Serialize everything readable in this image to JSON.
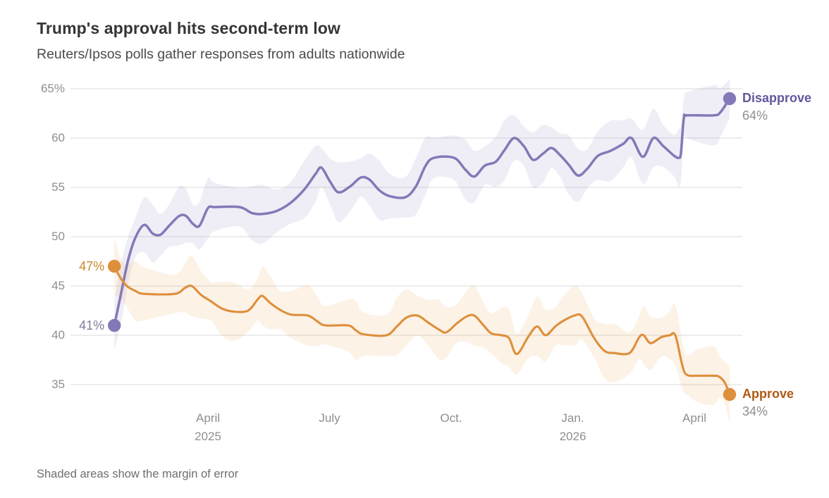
{
  "header": {
    "title": "Trump's approval hits second-term low",
    "subtitle": "Reuters/Ipsos polls gather responses from adults nationwide"
  },
  "footer": {
    "note": "Shaded areas show the margin of error"
  },
  "chart_data": {
    "type": "line",
    "title": "Trump's approval hits second-term low",
    "subtitle": "Reuters/Ipsos polls gather responses from adults nationwide",
    "note": "Shaded areas show the margin of error",
    "x_unit": "months_since_2025_01_01",
    "x_axis": {
      "range": [
        -0.4,
        16.2
      ],
      "ticks": [
        {
          "t": 3,
          "label": "April",
          "year": "2025"
        },
        {
          "t": 6,
          "label": "July",
          "year": ""
        },
        {
          "t": 9,
          "label": "Oct.",
          "year": ""
        },
        {
          "t": 12,
          "label": "Jan.",
          "year": "2026"
        },
        {
          "t": 15,
          "label": "April",
          "year": ""
        }
      ]
    },
    "y_axis": {
      "unit": "%",
      "ylim": [
        35,
        65
      ],
      "gridlines": true,
      "gridline_color": "#dbdbdb",
      "ticks": [
        {
          "value": 65,
          "label": "65%"
        },
        {
          "value": 60,
          "label": "60"
        },
        {
          "value": 55,
          "label": "55"
        },
        {
          "value": 50,
          "label": "50"
        },
        {
          "value": 45,
          "label": "45"
        },
        {
          "value": 40,
          "label": "40"
        },
        {
          "value": 35,
          "label": "35"
        }
      ]
    },
    "series": [
      {
        "name": "Disapprove",
        "color": "#8379b8",
        "band_color": "#8379b8",
        "band_opacity": 0.13,
        "line_width": 3.5,
        "margin_of_error_pct": 2.5,
        "start_value_pct": 41,
        "end_value_pct": 64,
        "start_label": {
          "text": "41%",
          "color": "#837d99"
        },
        "end_label": {
          "name": "Disapprove",
          "value": "64%",
          "name_color": "#60589d"
        },
        "points": [
          [
            0.69,
            41.0
          ],
          [
            0.86,
            44.3
          ],
          [
            1.03,
            47.6
          ],
          [
            1.21,
            49.9
          ],
          [
            1.43,
            51.2
          ],
          [
            1.64,
            50.3
          ],
          [
            1.83,
            50.2
          ],
          [
            2.04,
            51.1
          ],
          [
            2.29,
            52.1
          ],
          [
            2.46,
            52.1
          ],
          [
            2.63,
            51.3
          ],
          [
            2.79,
            51.1
          ],
          [
            3.0,
            52.9
          ],
          [
            3.17,
            53.0
          ],
          [
            3.78,
            53.0
          ],
          [
            4.08,
            52.4
          ],
          [
            4.34,
            52.3
          ],
          [
            4.69,
            52.6
          ],
          [
            5.03,
            53.4
          ],
          [
            5.38,
            54.8
          ],
          [
            5.66,
            56.4
          ],
          [
            5.8,
            57.0
          ],
          [
            6.01,
            55.6
          ],
          [
            6.22,
            54.5
          ],
          [
            6.51,
            55.1
          ],
          [
            6.77,
            56.0
          ],
          [
            6.98,
            55.8
          ],
          [
            7.23,
            54.7
          ],
          [
            7.49,
            54.1
          ],
          [
            7.87,
            54.0
          ],
          [
            8.13,
            55.1
          ],
          [
            8.37,
            57.2
          ],
          [
            8.58,
            58.0
          ],
          [
            9.07,
            58.0
          ],
          [
            9.35,
            56.8
          ],
          [
            9.57,
            56.1
          ],
          [
            9.83,
            57.2
          ],
          [
            10.1,
            57.6
          ],
          [
            10.32,
            58.8
          ],
          [
            10.55,
            60.0
          ],
          [
            10.79,
            59.2
          ],
          [
            11.02,
            57.8
          ],
          [
            11.26,
            58.4
          ],
          [
            11.47,
            59.0
          ],
          [
            11.68,
            58.3
          ],
          [
            11.9,
            57.3
          ],
          [
            12.13,
            56.2
          ],
          [
            12.36,
            56.9
          ],
          [
            12.62,
            58.2
          ],
          [
            12.93,
            58.7
          ],
          [
            13.24,
            59.4
          ],
          [
            13.45,
            60.0
          ],
          [
            13.73,
            58.1
          ],
          [
            13.99,
            60.0
          ],
          [
            14.23,
            59.2
          ],
          [
            14.5,
            58.2
          ],
          [
            14.62,
            58.0
          ],
          [
            14.67,
            58.5
          ],
          [
            14.74,
            62.0
          ],
          [
            14.83,
            62.3
          ],
          [
            15.47,
            62.3
          ],
          [
            15.64,
            62.6
          ],
          [
            15.87,
            64.0
          ]
        ]
      },
      {
        "name": "Approve",
        "color": "#de8f3b",
        "band_color": "#e8a04c",
        "band_opacity": 0.14,
        "line_width": 3.1,
        "margin_of_error_pct": 2.5,
        "start_value_pct": 47,
        "end_value_pct": 34,
        "start_label": {
          "text": "47%",
          "color": "#c98a2e"
        },
        "end_label": {
          "name": "Approve",
          "value": "34%",
          "name_color": "#b05a14"
        },
        "points": [
          [
            0.69,
            47.0
          ],
          [
            0.83,
            45.9
          ],
          [
            1.0,
            45.0
          ],
          [
            1.21,
            44.5
          ],
          [
            1.43,
            44.2
          ],
          [
            2.18,
            44.2
          ],
          [
            2.43,
            44.8
          ],
          [
            2.6,
            45.0
          ],
          [
            2.83,
            44.1
          ],
          [
            3.09,
            43.4
          ],
          [
            3.35,
            42.7
          ],
          [
            3.64,
            42.4
          ],
          [
            3.99,
            42.5
          ],
          [
            4.22,
            43.6
          ],
          [
            4.34,
            44.0
          ],
          [
            4.53,
            43.3
          ],
          [
            4.77,
            42.6
          ],
          [
            5.05,
            42.1
          ],
          [
            5.47,
            42.0
          ],
          [
            5.7,
            41.4
          ],
          [
            5.9,
            41.0
          ],
          [
            6.46,
            41.0
          ],
          [
            6.65,
            40.5
          ],
          [
            6.84,
            40.1
          ],
          [
            7.4,
            40.0
          ],
          [
            7.66,
            40.9
          ],
          [
            7.9,
            41.8
          ],
          [
            8.17,
            42.0
          ],
          [
            8.43,
            41.3
          ],
          [
            8.69,
            40.6
          ],
          [
            8.88,
            40.3
          ],
          [
            9.14,
            41.2
          ],
          [
            9.38,
            41.9
          ],
          [
            9.57,
            42.0
          ],
          [
            9.8,
            41.0
          ],
          [
            9.99,
            40.2
          ],
          [
            10.25,
            40.0
          ],
          [
            10.43,
            39.7
          ],
          [
            10.62,
            38.1
          ],
          [
            10.91,
            39.9
          ],
          [
            11.12,
            40.9
          ],
          [
            11.33,
            40.0
          ],
          [
            11.57,
            40.9
          ],
          [
            11.78,
            41.5
          ],
          [
            12.04,
            42.0
          ],
          [
            12.23,
            41.9
          ],
          [
            12.53,
            39.7
          ],
          [
            12.79,
            38.4
          ],
          [
            13.03,
            38.2
          ],
          [
            13.4,
            38.2
          ],
          [
            13.64,
            39.8
          ],
          [
            13.75,
            40.0
          ],
          [
            13.92,
            39.2
          ],
          [
            14.18,
            39.8
          ],
          [
            14.39,
            40.0
          ],
          [
            14.53,
            40.0
          ],
          [
            14.7,
            37.0
          ],
          [
            14.81,
            36.0
          ],
          [
            15.09,
            35.9
          ],
          [
            15.47,
            35.9
          ],
          [
            15.61,
            35.8
          ],
          [
            15.75,
            35.2
          ],
          [
            15.87,
            34.0
          ]
        ]
      }
    ]
  }
}
